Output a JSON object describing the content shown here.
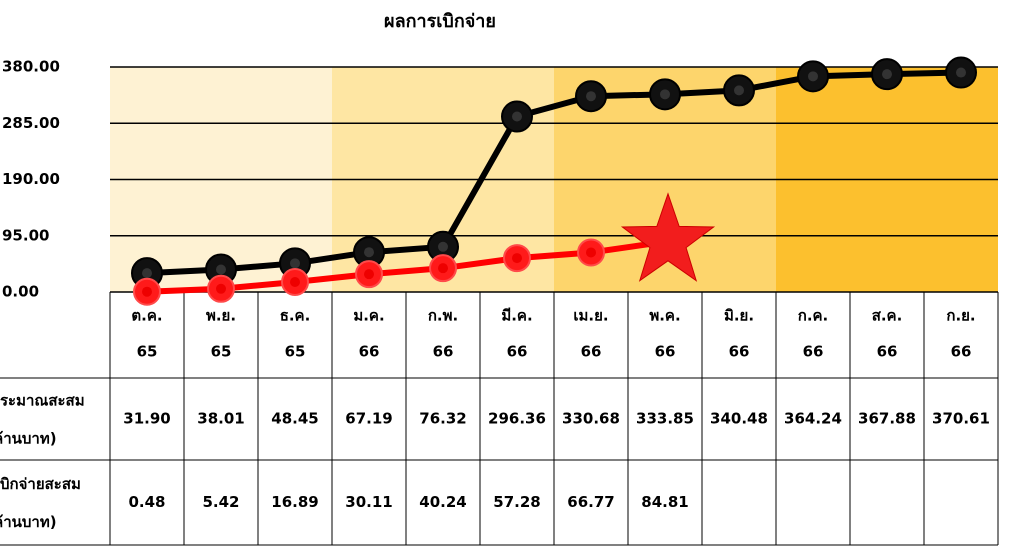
{
  "chart_data": {
    "type": "line",
    "title": "ผลการเบิกจ่าย",
    "categories": [
      [
        "ต.ค.",
        "65"
      ],
      [
        "พ.ย.",
        "65"
      ],
      [
        "ธ.ค.",
        "65"
      ],
      [
        "ม.ค.",
        "66"
      ],
      [
        "ก.พ.",
        "66"
      ],
      [
        "มี.ค.",
        "66"
      ],
      [
        "เม.ย.",
        "66"
      ],
      [
        "พ.ค.",
        "66"
      ],
      [
        "มิ.ย.",
        "66"
      ],
      [
        "ก.ค.",
        "66"
      ],
      [
        "ส.ค.",
        "66"
      ],
      [
        "ก.ย.",
        "66"
      ]
    ],
    "ylim": [
      0,
      380
    ],
    "yticks": [
      {
        "value": 0,
        "label": "0.00"
      },
      {
        "value": 95,
        "label": "95.00"
      },
      {
        "value": 190,
        "label": "190.00"
      },
      {
        "value": 285,
        "label": "285.00"
      },
      {
        "value": 380,
        "label": "380.00"
      }
    ],
    "grid": true,
    "series": [
      {
        "name": [
          "ระมาณสะสม",
          "ล้านบาท)"
        ],
        "color": "#000000",
        "values": [
          31.9,
          38.01,
          48.45,
          67.19,
          76.32,
          296.36,
          330.68,
          333.85,
          340.48,
          364.24,
          367.88,
          370.61
        ],
        "value_labels": [
          "31.90",
          "38.01",
          "48.45",
          "67.19",
          "76.32",
          "296.36",
          "330.68",
          "333.85",
          "340.48",
          "364.24",
          "367.88",
          "370.61"
        ]
      },
      {
        "name": [
          "บิกจ่ายสะสม",
          "ล้านบาท)"
        ],
        "color": "#ff0000",
        "values": [
          0.48,
          5.42,
          16.89,
          30.11,
          40.24,
          57.28,
          66.77,
          84.81,
          null,
          null,
          null,
          null
        ],
        "value_labels": [
          "0.48",
          "5.42",
          "16.89",
          "30.11",
          "40.24",
          "57.28",
          "66.77",
          "84.81",
          null,
          null,
          null,
          null
        ]
      }
    ]
  }
}
